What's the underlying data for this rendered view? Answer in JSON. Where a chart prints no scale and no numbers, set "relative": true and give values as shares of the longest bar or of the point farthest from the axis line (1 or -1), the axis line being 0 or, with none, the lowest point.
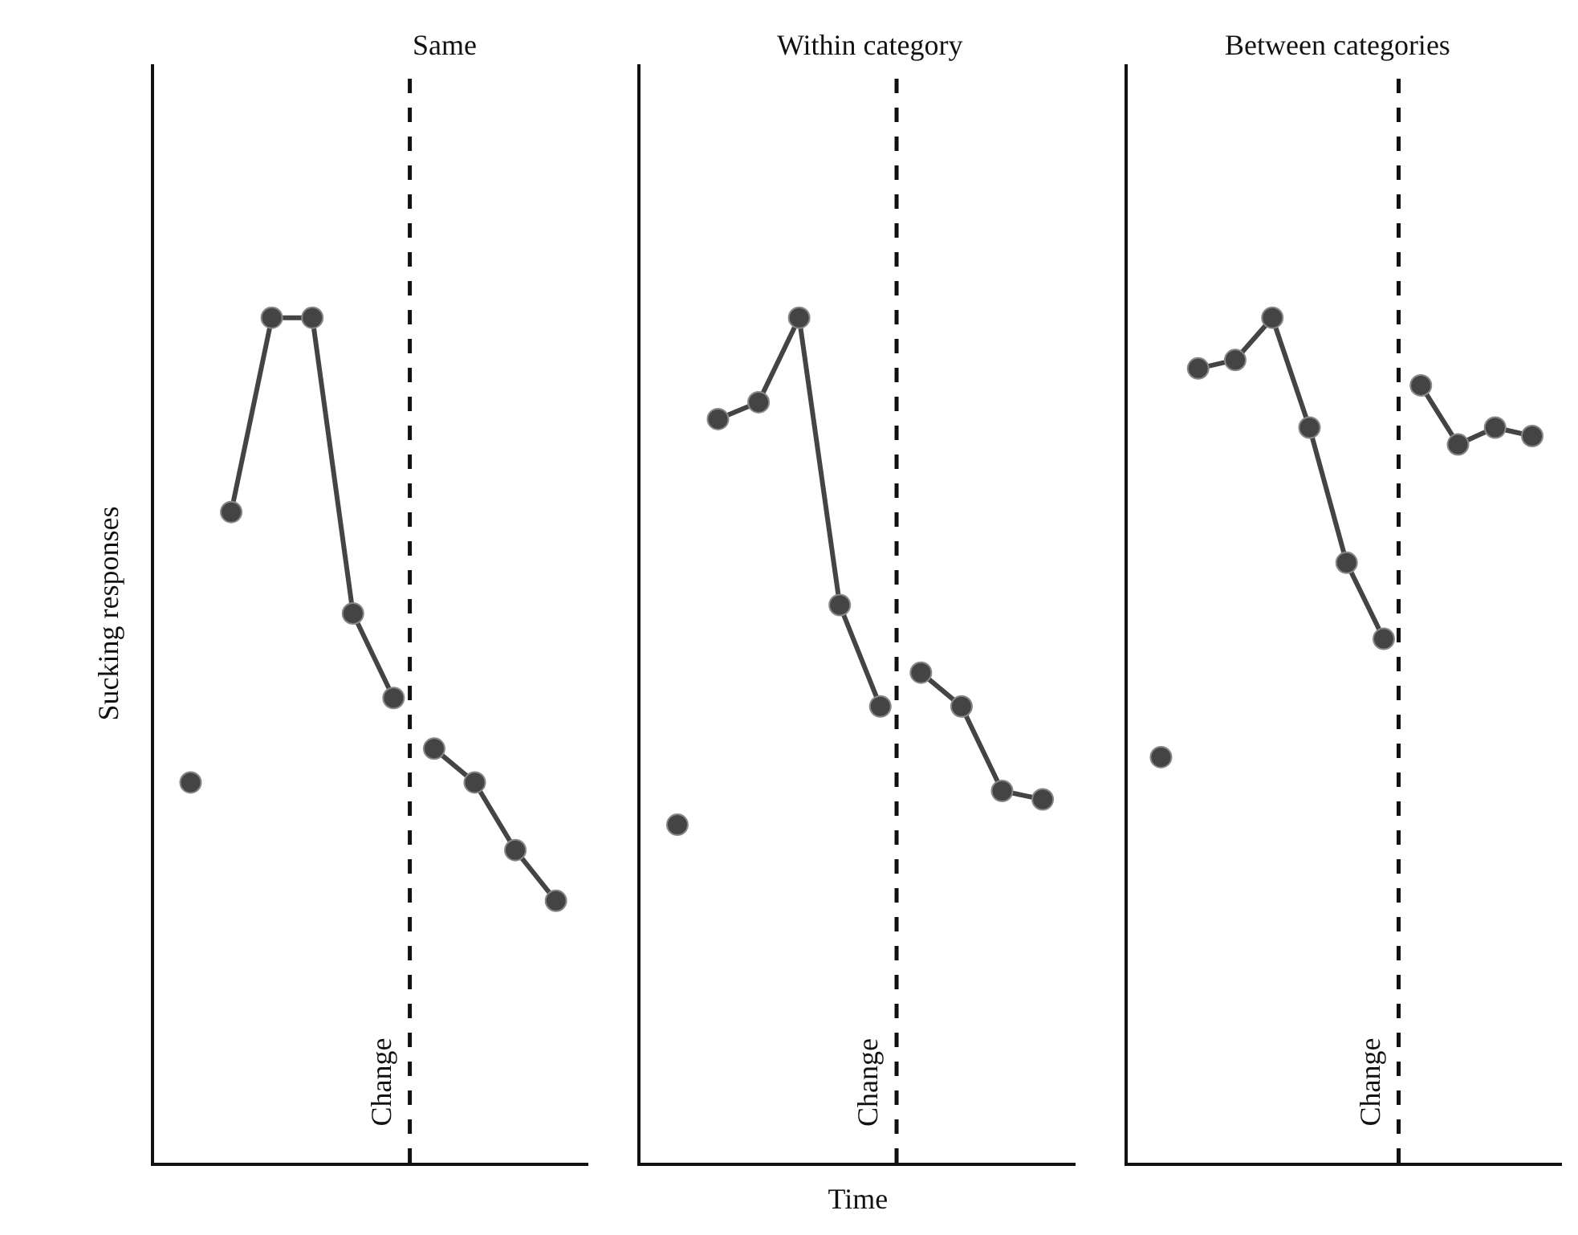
{
  "chart_data": [
    {
      "type": "line",
      "title": "Same",
      "ylabel": "Sucking responses",
      "relative": true,
      "marker": "circle",
      "line_style": "solid",
      "categories": [
        null,
        null,
        null,
        null,
        null,
        null,
        null,
        null,
        null,
        null
      ],
      "series": [
        {
          "color": "#444444",
          "values": [
            0.45,
            null,
            null,
            null,
            null,
            null,
            null,
            null,
            null,
            null
          ]
        },
        {
          "color": "#444444",
          "values": [
            null,
            0.77,
            1.0,
            1.0,
            0.65,
            0.55,
            null,
            null,
            null,
            null
          ]
        },
        {
          "color": "#444444",
          "values": [
            null,
            null,
            null,
            null,
            null,
            null,
            0.49,
            0.45,
            0.37,
            0.31
          ]
        }
      ],
      "annotations": [
        "Change"
      ]
    },
    {
      "type": "line",
      "title": "Within category",
      "xlabel": "Time",
      "relative": true,
      "marker": "circle",
      "line_style": "solid",
      "categories": [
        null,
        null,
        null,
        null,
        null,
        null,
        null,
        null,
        null,
        null
      ],
      "series": [
        {
          "color": "#444444",
          "values": [
            0.4,
            null,
            null,
            null,
            null,
            null,
            null,
            null,
            null,
            null
          ]
        },
        {
          "color": "#444444",
          "values": [
            null,
            0.88,
            0.9,
            1.0,
            0.66,
            0.54,
            null,
            null,
            null,
            null
          ]
        },
        {
          "color": "#444444",
          "values": [
            null,
            null,
            null,
            null,
            null,
            null,
            0.58,
            0.54,
            0.44,
            0.43
          ]
        }
      ],
      "annotations": [
        "Change"
      ]
    },
    {
      "type": "line",
      "title": "Between categories",
      "relative": true,
      "marker": "circle",
      "line_style": "solid",
      "categories": [
        null,
        null,
        null,
        null,
        null,
        null,
        null,
        null,
        null,
        null,
        null
      ],
      "series": [
        {
          "color": "#444444",
          "values": [
            0.48,
            null,
            null,
            null,
            null,
            null,
            null,
            null,
            null,
            null,
            null
          ]
        },
        {
          "color": "#444444",
          "values": [
            null,
            0.94,
            0.95,
            1.0,
            0.87,
            0.71,
            0.62,
            null,
            null,
            null,
            null
          ]
        },
        {
          "color": "#444444",
          "values": [
            null,
            null,
            null,
            null,
            null,
            null,
            null,
            0.92,
            0.85,
            0.87,
            0.86
          ]
        }
      ],
      "annotations": [
        "Change"
      ]
    }
  ]
}
